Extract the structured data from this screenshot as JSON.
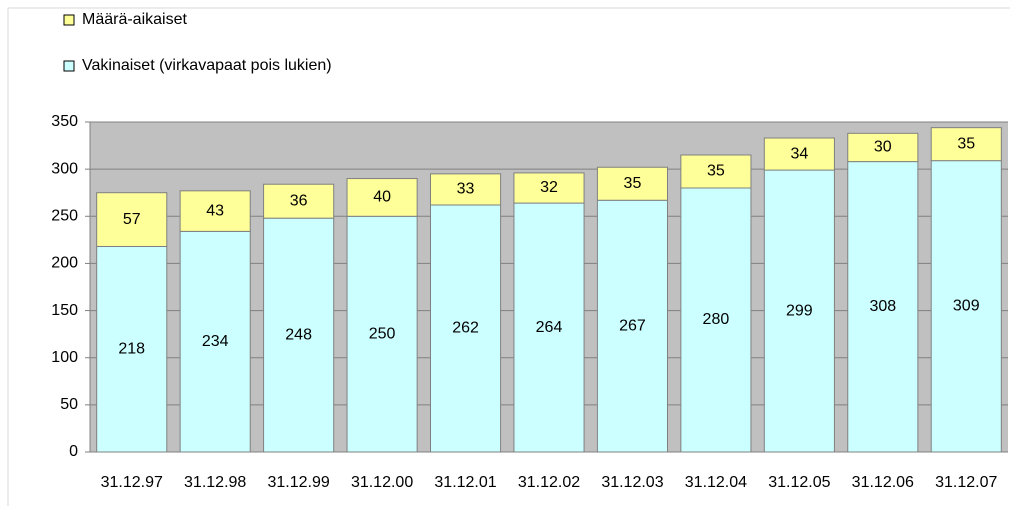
{
  "chart_data": {
    "type": "stacked-bar",
    "categories": [
      "31.12.97",
      "31.12.98",
      "31.12.99",
      "31.12.00",
      "31.12.01",
      "31.12.02",
      "31.12.03",
      "31.12.04",
      "31.12.05",
      "31.12.06",
      "31.12.07"
    ],
    "series": [
      {
        "name": "Vakinaiset (virkavapaat pois lukien)",
        "color": "#ccffff",
        "values": [
          218,
          234,
          248,
          250,
          262,
          264,
          267,
          280,
          299,
          308,
          309
        ]
      },
      {
        "name": "Määrä-aikaiset",
        "color": "#ffff99",
        "values": [
          57,
          43,
          36,
          40,
          33,
          32,
          35,
          35,
          34,
          30,
          35
        ]
      }
    ],
    "ylim": [
      0,
      350
    ],
    "yticks": [
      0,
      50,
      100,
      150,
      200,
      250,
      300,
      350
    ],
    "grid": true,
    "legend": "top-left"
  }
}
